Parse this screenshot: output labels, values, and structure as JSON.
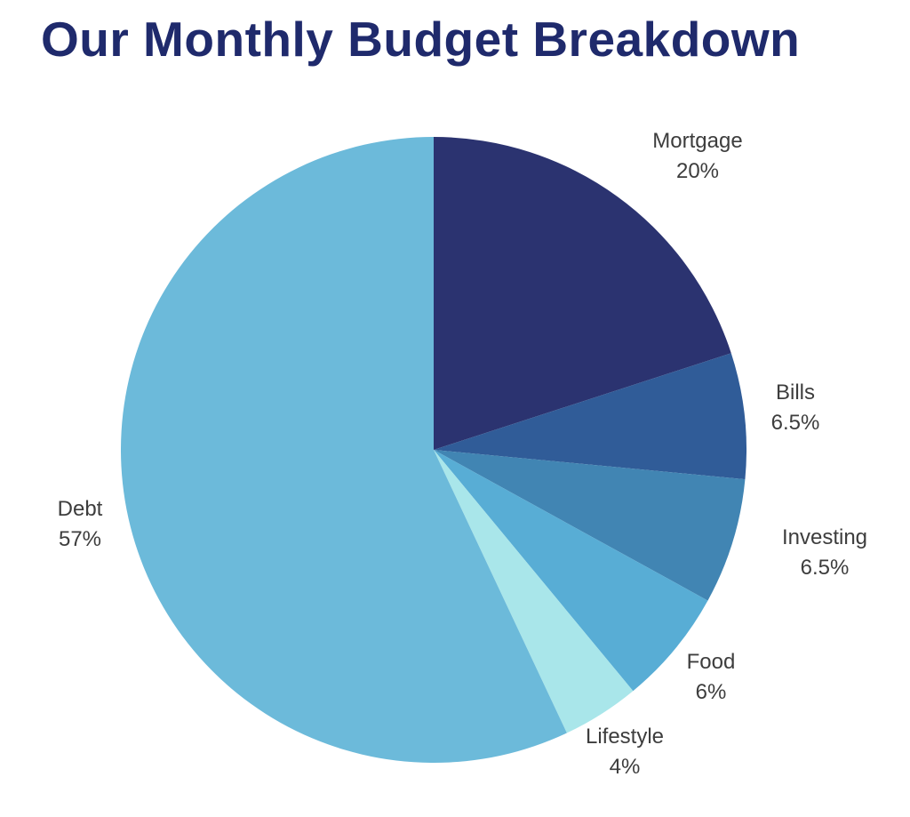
{
  "page": {
    "title": "Our Monthly Budget Breakdown"
  },
  "chart_data": {
    "type": "pie",
    "title": "Our Monthly Budget Breakdown",
    "title_color": "#1f2a6c",
    "background": "#ffffff",
    "start_angle": "12-o-clock",
    "direction": "clockwise",
    "legend_position": "labels-outside-slices",
    "label_color": "#3d3d3d",
    "slices": [
      {
        "label": "Mortgage",
        "value": 20,
        "pct_label": "20%",
        "color": "#2b3370"
      },
      {
        "label": "Bills",
        "value": 6.5,
        "pct_label": "6.5%",
        "color": "#305c98"
      },
      {
        "label": "Investing",
        "value": 6.5,
        "pct_label": "6.5%",
        "color": "#4185b3"
      },
      {
        "label": "Food",
        "value": 6,
        "pct_label": "6%",
        "color": "#58add5"
      },
      {
        "label": "Lifestyle",
        "value": 4,
        "pct_label": "4%",
        "color": "#a9e6ea"
      },
      {
        "label": "Debt",
        "value": 57,
        "pct_label": "57%",
        "color": "#6cbada"
      }
    ]
  }
}
